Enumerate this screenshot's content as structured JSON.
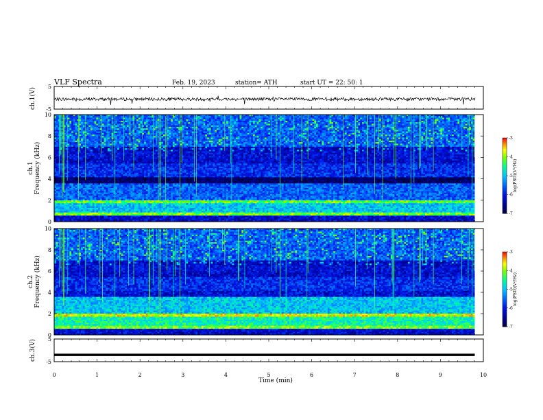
{
  "header": {
    "title": "VLF  Spectra",
    "date": "Feb. 19, 2023",
    "station": "station= ATH",
    "start": "start  UT  =    22: 50: 1"
  },
  "chart_data": [
    {
      "type": "line",
      "id": "ch1-waveform",
      "ylabel": "ch.1(V)",
      "ylim": [
        -5,
        5
      ],
      "yticks": [
        "5",
        "-5"
      ],
      "xlim": [
        0,
        10
      ],
      "series": [
        {
          "color": "#000000",
          "baseline": -0.6,
          "noise_amplitude": 0.7
        }
      ]
    },
    {
      "type": "heatmap",
      "id": "ch1-spectrogram",
      "ylabel": "ch.1\nFrequency (kHz)",
      "ylim": [
        0,
        10
      ],
      "yticks": [
        "0",
        "2",
        "4",
        "6",
        "8",
        "10"
      ],
      "xlim": [
        0,
        9.8
      ],
      "colorbar": {
        "label": "log(PSD)(V²/Hz)",
        "range": [
          -7,
          -3
        ],
        "ticks": [
          "-3",
          "-4",
          "-5",
          "-6",
          "-7"
        ]
      }
    },
    {
      "type": "heatmap",
      "id": "ch2-spectrogram",
      "ylabel": "ch.2\nFrequency (kHz)",
      "ylim": [
        0,
        10
      ],
      "yticks": [
        "0",
        "2",
        "4",
        "6",
        "8",
        "10"
      ],
      "xlim": [
        0,
        9.8
      ],
      "colorbar": {
        "label": "log(PSD)(V²/Hz)",
        "range": [
          -7,
          -3
        ],
        "ticks": [
          "-3",
          "-4",
          "-5",
          "-6",
          "-7"
        ]
      }
    },
    {
      "type": "line",
      "id": "ch3-waveform",
      "ylabel": "ch.3(V)",
      "ylim": [
        -5,
        5
      ],
      "yticks": [
        "5",
        "-5"
      ],
      "xlim": [
        0,
        9.8
      ],
      "series": [
        {
          "color": "#000000",
          "values": [
            -2,
            -2
          ]
        }
      ]
    }
  ],
  "xaxis": {
    "label": "Time  (min)",
    "range": [
      0,
      10
    ],
    "ticks": [
      "0",
      "1",
      "2",
      "3",
      "4",
      "5",
      "6",
      "7",
      "8",
      "9",
      "10"
    ]
  },
  "colors": {
    "low": "#000066",
    "mid_low": "#0000ff",
    "mid": "#00aaff",
    "mid_high": "#00ff66",
    "high": "#ffff00",
    "peak": "#ff0000"
  }
}
